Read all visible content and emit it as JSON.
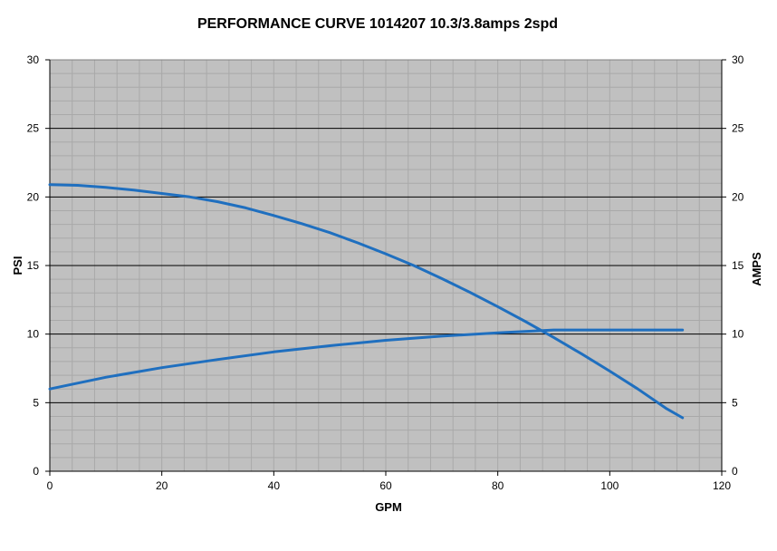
{
  "chart_data": {
    "type": "line",
    "title": "PERFORMANCE CURVE 1014207 10.3/3.8amps 2spd",
    "xlabel": "GPM",
    "ylabel": "PSI",
    "y2label": "AMPS",
    "xlim": [
      0,
      120
    ],
    "ylim": [
      0,
      30
    ],
    "y2lim": [
      0,
      30
    ],
    "x_ticks": [
      0,
      20,
      40,
      60,
      80,
      100,
      120
    ],
    "y_ticks": [
      0,
      5,
      10,
      15,
      20,
      25,
      30
    ],
    "y2_ticks": [
      0,
      5,
      10,
      15,
      20,
      25,
      30
    ],
    "grid": true,
    "colors": {
      "plot_bg": "#c0c0c0",
      "series": "#1f6fbf",
      "major_grid": "#000000",
      "minor_grid": "#a9a9a9"
    },
    "series": [
      {
        "axis": "left",
        "x": [
          0,
          5,
          10,
          15,
          20,
          25,
          30,
          35,
          40,
          45,
          50,
          55,
          60,
          65,
          70,
          75,
          80,
          85,
          90,
          95,
          100,
          105,
          110,
          113
        ],
        "values": [
          20.9,
          20.85,
          20.7,
          20.5,
          20.25,
          20.0,
          19.65,
          19.2,
          18.65,
          18.05,
          17.4,
          16.65,
          15.85,
          15.0,
          14.05,
          13.05,
          12.0,
          10.9,
          9.75,
          8.55,
          7.3,
          6.0,
          4.6,
          3.9
        ]
      },
      {
        "axis": "right",
        "x": [
          0,
          10,
          20,
          30,
          40,
          50,
          60,
          70,
          80,
          90,
          100,
          113
        ],
        "values": [
          6.0,
          6.85,
          7.55,
          8.15,
          8.7,
          9.15,
          9.55,
          9.85,
          10.1,
          10.3,
          10.3,
          10.3
        ]
      }
    ]
  }
}
